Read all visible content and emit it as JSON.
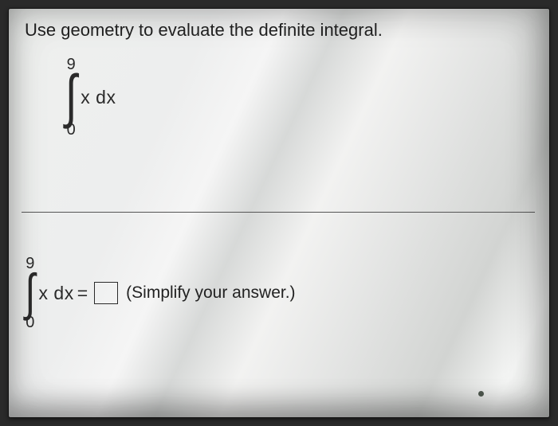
{
  "instruction": "Use geometry to evaluate the definite integral.",
  "problem": {
    "upper_limit": "9",
    "lower_limit": "0",
    "integrand": "x dx"
  },
  "answer": {
    "upper_limit": "9",
    "lower_limit": "0",
    "integrand": "x dx",
    "equals": "=",
    "hint": "(Simplify your answer.)"
  },
  "style": {
    "text_color": "#2a2a2a",
    "rule_color": "#555555",
    "instruction_fontsize": 22,
    "math_fontsize": 23,
    "limit_fontsize": 20
  }
}
